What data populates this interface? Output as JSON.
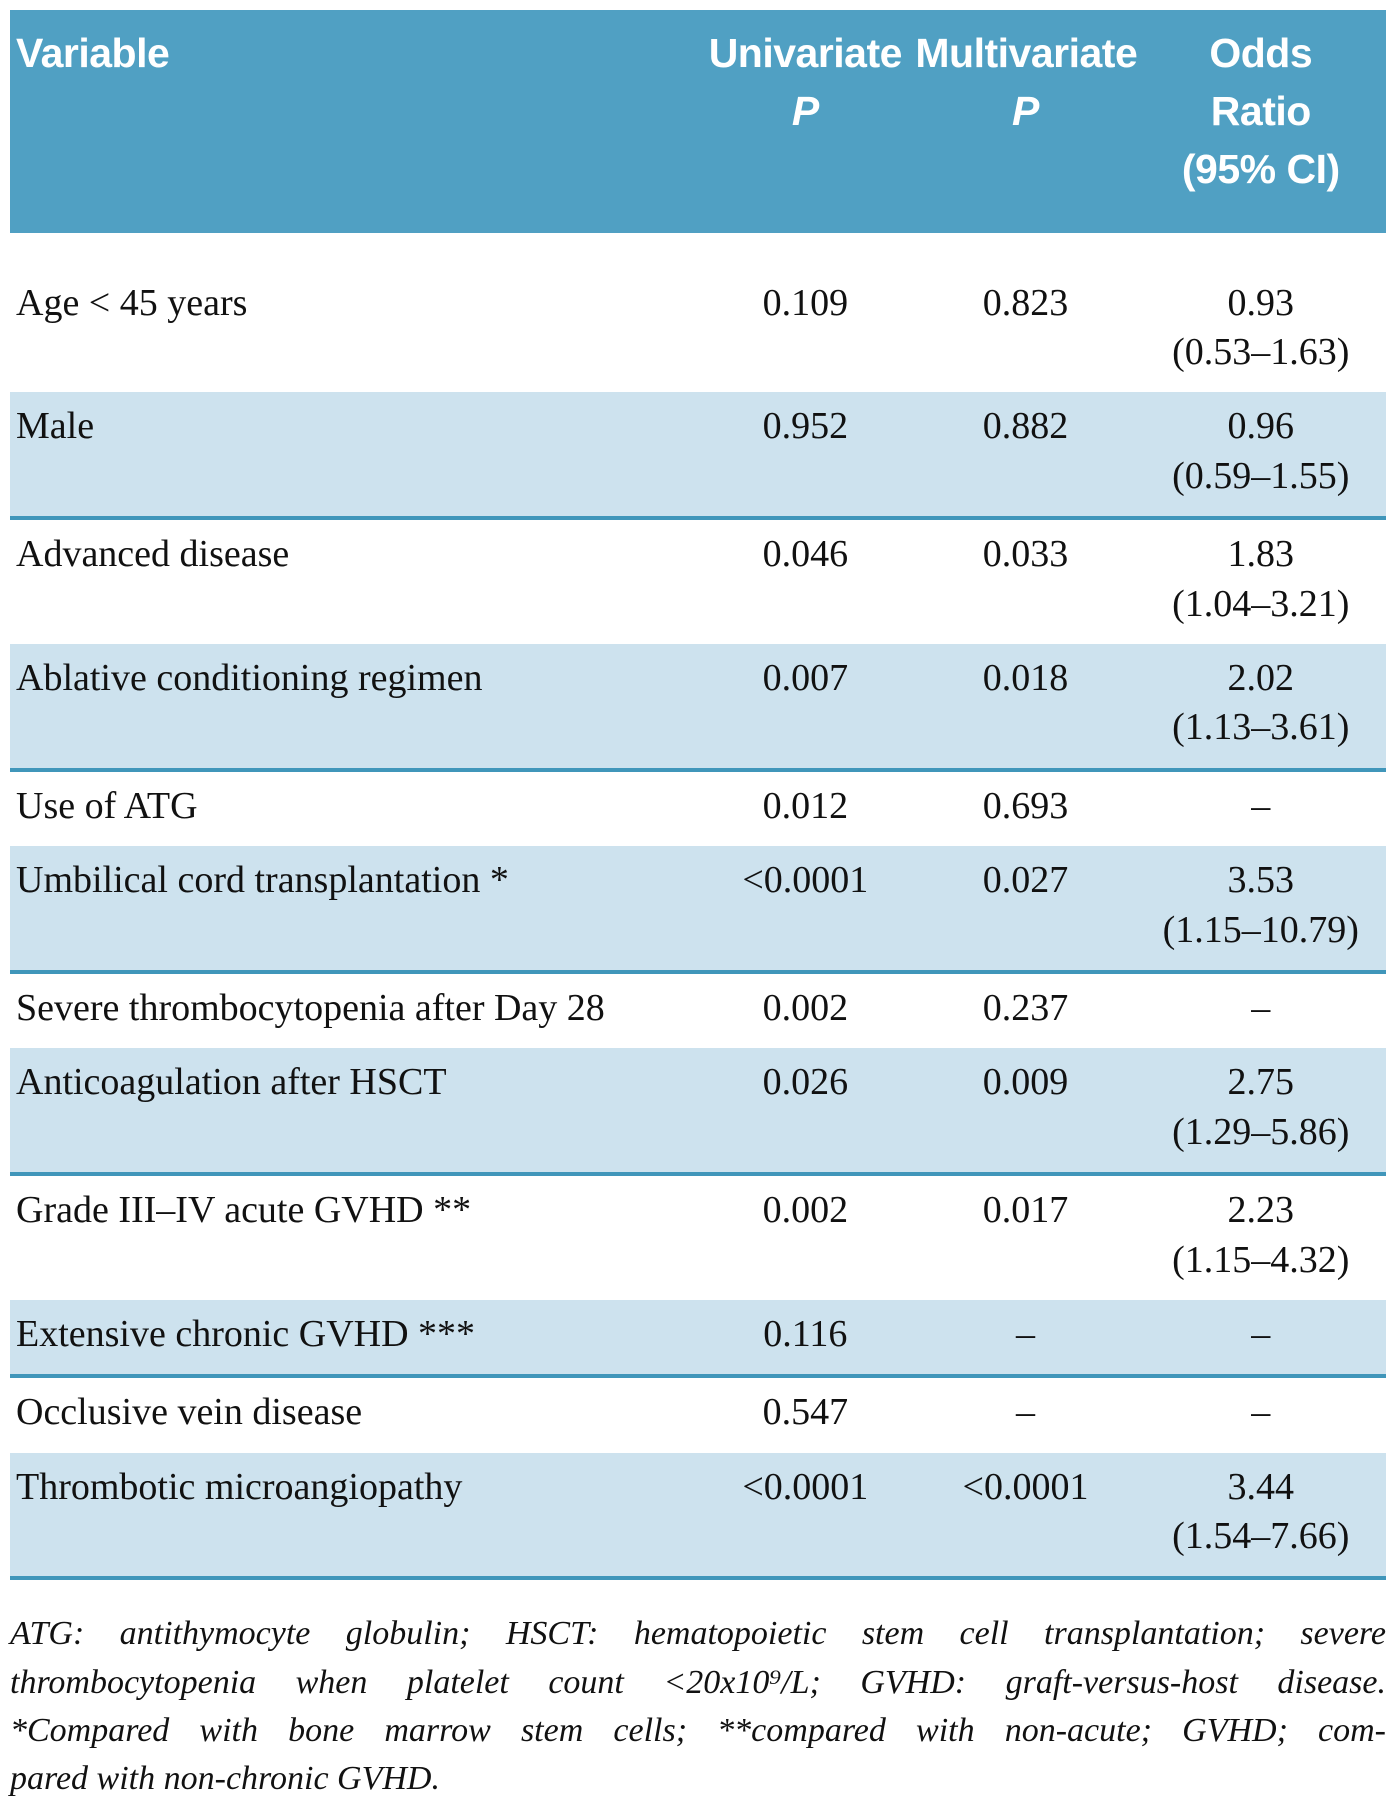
{
  "table": {
    "columns": [
      {
        "label": "Variable"
      },
      {
        "label": "Univariate",
        "sub": "P"
      },
      {
        "label": "Multivariate",
        "sub": "P"
      },
      {
        "line1": "Odds",
        "line2": "Ratio",
        "line3": "(95% CI)"
      }
    ],
    "rows": [
      {
        "variable": "Age < 45 years",
        "univariate": "0.109",
        "multivariate": "0.823",
        "odds_ratio": "0.93",
        "ci": "(0.53–1.63)",
        "shaded": false
      },
      {
        "variable": "Male",
        "univariate": "0.952",
        "multivariate": "0.882",
        "odds_ratio": "0.96",
        "ci": "(0.59–1.55)",
        "shaded": true
      },
      {
        "variable": "Advanced disease",
        "univariate": "0.046",
        "multivariate": "0.033",
        "odds_ratio": "1.83",
        "ci": "(1.04–3.21)",
        "shaded": false
      },
      {
        "variable": "Ablative conditioning regimen",
        "univariate": "0.007",
        "multivariate": "0.018",
        "odds_ratio": "2.02",
        "ci": "(1.13–3.61)",
        "shaded": true
      },
      {
        "variable": "Use of ATG",
        "univariate": "0.012",
        "multivariate": "0.693",
        "odds_ratio": "–",
        "ci": "",
        "shaded": false
      },
      {
        "variable": "Umbilical cord transplantation *",
        "univariate": "<0.0001",
        "multivariate": "0.027",
        "odds_ratio": "3.53",
        "ci": "(1.15–10.79)",
        "shaded": true
      },
      {
        "variable": "Severe thrombocytopenia after Day 28",
        "univariate": "0.002",
        "multivariate": "0.237",
        "odds_ratio": "–",
        "ci": "",
        "shaded": false
      },
      {
        "variable": "Anticoagulation after HSCT",
        "univariate": "0.026",
        "multivariate": "0.009",
        "odds_ratio": "2.75",
        "ci": "(1.29–5.86)",
        "shaded": true
      },
      {
        "variable": "Grade III–IV acute GVHD **",
        "univariate": "0.002",
        "multivariate": "0.017",
        "odds_ratio": "2.23",
        "ci": "(1.15–4.32)",
        "shaded": false
      },
      {
        "variable": "Extensive chronic GVHD ***",
        "univariate": "0.116",
        "multivariate": "–",
        "odds_ratio": "–",
        "ci": "",
        "shaded": true
      },
      {
        "variable": "Occlusive vein disease",
        "univariate": "0.547",
        "multivariate": "–",
        "odds_ratio": "–",
        "ci": "",
        "shaded": false
      },
      {
        "variable": "Thrombotic microangiopathy",
        "univariate": "<0.0001",
        "multivariate": "<0.0001",
        "odds_ratio": "3.44",
        "ci": "(1.54–7.66)",
        "shaded": true
      }
    ]
  },
  "footnote": {
    "lines": [
      "ATG: antithymocyte globulin; HSCT: hematopoietic stem cell transplantation; severe",
      "thrombocytopenia when platelet count <20x10⁹/L; GVHD: graft-versus-host disease.",
      "*Compared with bone marrow stem cells; **compared with non-acute; GVHD; com-",
      "pared with non-chronic GVHD."
    ]
  },
  "colors": {
    "header_background": "#50a0c3",
    "shaded_row_background": "#cde2ee",
    "row_rule": "#4096ba",
    "header_text": "#ffffff",
    "body_text": "#111111"
  }
}
